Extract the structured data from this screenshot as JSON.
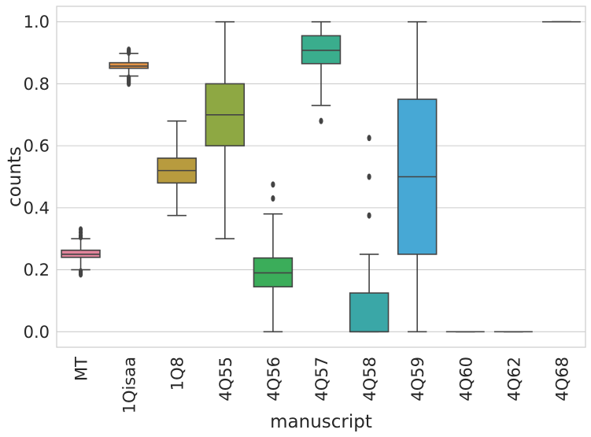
{
  "chart_data": {
    "type": "box",
    "xlabel": "manuscript",
    "ylabel": "counts",
    "ylim": [
      -0.05,
      1.05
    ],
    "yticks": [
      "0.0",
      "0.2",
      "0.4",
      "0.6",
      "0.8",
      "1.0"
    ],
    "ytick_values": [
      0.0,
      0.2,
      0.4,
      0.6,
      0.8,
      1.0
    ],
    "grid": "horizontal",
    "categories": [
      "MT",
      "1Qisaa",
      "1Q8",
      "4Q55",
      "4Q56",
      "4Q57",
      "4Q58",
      "4Q59",
      "4Q60",
      "4Q62",
      "4Q68"
    ],
    "boxes": [
      {
        "name": "MT",
        "color": "#e1849b",
        "whisker_low": 0.2,
        "q1": 0.24,
        "median": 0.25,
        "q3": 0.263,
        "whisker_high": 0.3,
        "outliers": [
          0.185,
          0.19,
          0.195,
          0.305,
          0.31,
          0.32,
          0.33
        ]
      },
      {
        "name": "1Qisaa",
        "color": "#e39547",
        "whisker_low": 0.825,
        "q1": 0.85,
        "median": 0.857,
        "q3": 0.868,
        "whisker_high": 0.898,
        "outliers": [
          0.8,
          0.805,
          0.81,
          0.815,
          0.82,
          0.9,
          0.905,
          0.91
        ]
      },
      {
        "name": "1Q8",
        "color": "#b89b3e",
        "whisker_low": 0.375,
        "q1": 0.48,
        "median": 0.52,
        "q3": 0.56,
        "whisker_high": 0.68,
        "outliers": []
      },
      {
        "name": "4Q55",
        "color": "#8ea843",
        "whisker_low": 0.3,
        "q1": 0.6,
        "median": 0.7,
        "q3": 0.8,
        "whisker_high": 1.0,
        "outliers": []
      },
      {
        "name": "4Q56",
        "color": "#3bad5a",
        "whisker_low": 0.0,
        "q1": 0.145,
        "median": 0.19,
        "q3": 0.238,
        "whisker_high": 0.38,
        "outliers": [
          0.43,
          0.475
        ]
      },
      {
        "name": "4Q57",
        "color": "#3aad8d",
        "whisker_low": 0.73,
        "q1": 0.865,
        "median": 0.908,
        "q3": 0.955,
        "whisker_high": 1.0,
        "outliers": [
          0.68
        ]
      },
      {
        "name": "4Q58",
        "color": "#3aa7a7",
        "whisker_low": 0.0,
        "q1": 0.0,
        "median": 0.0,
        "q3": 0.125,
        "whisker_high": 0.25,
        "outliers": [
          0.375,
          0.5,
          0.625
        ]
      },
      {
        "name": "4Q59",
        "color": "#47a8d5",
        "whisker_low": 0.0,
        "q1": 0.25,
        "median": 0.5,
        "q3": 0.75,
        "whisker_high": 1.0,
        "outliers": []
      },
      {
        "name": "4Q60",
        "color": "#9c94e0",
        "whisker_low": 0.0,
        "q1": 0.0,
        "median": 0.0,
        "q3": 0.0,
        "whisker_high": 0.0,
        "outliers": []
      },
      {
        "name": "4Q62",
        "color": "#da84e3",
        "whisker_low": 0.0,
        "q1": 0.0,
        "median": 0.0,
        "q3": 0.0,
        "whisker_high": 0.0,
        "outliers": []
      },
      {
        "name": "4Q68",
        "color": "#e485c0",
        "whisker_low": 1.0,
        "q1": 1.0,
        "median": 1.0,
        "q3": 1.0,
        "whisker_high": 1.0,
        "outliers": []
      }
    ]
  }
}
